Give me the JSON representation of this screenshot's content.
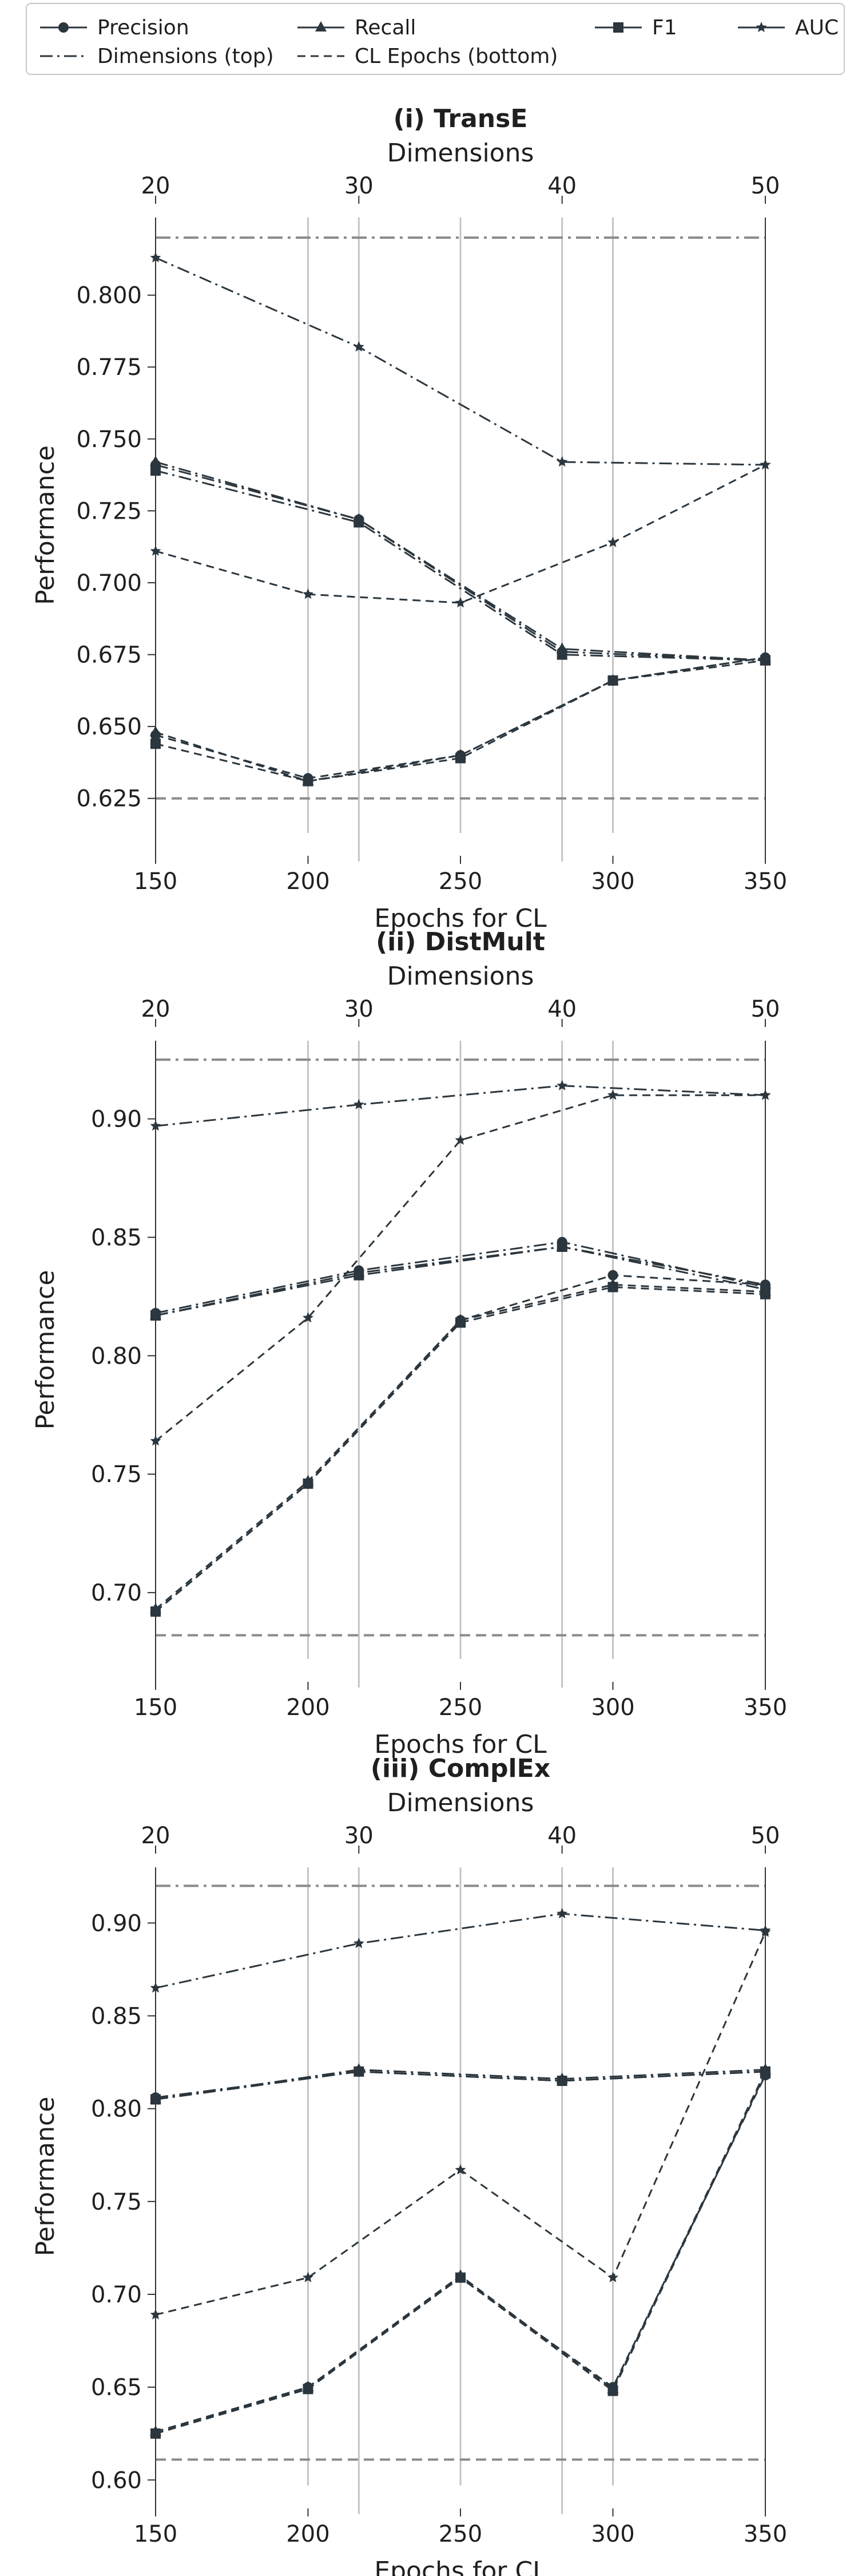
{
  "colors": {
    "series": "#2b363e",
    "vline": "#c4c4c4",
    "dimline": "#8a8a8a",
    "axis": "#333333",
    "legend_border": "#c8c8c8"
  },
  "legend": {
    "items": [
      {
        "label": "Precision",
        "key": "precision",
        "marker": "circle",
        "dash": "solid"
      },
      {
        "label": "Recall",
        "key": "recall",
        "marker": "triangle",
        "dash": "solid"
      },
      {
        "label": "F1",
        "key": "f1",
        "marker": "square",
        "dash": "solid"
      },
      {
        "label": "AUC",
        "key": "auc",
        "marker": "star",
        "dash": "solid"
      },
      {
        "label": "Dimensions (top)",
        "key": "dims",
        "marker": "none",
        "dash": "dashdot"
      },
      {
        "label": "CL Epochs (bottom)",
        "key": "epochs",
        "marker": "none",
        "dash": "dashed"
      }
    ]
  },
  "chart_data": [
    {
      "type": "line",
      "title": "(i) TransE",
      "xlabel": "Epochs for CL",
      "x2label": "Dimensions",
      "ylabel": "Performance",
      "x": [
        150,
        200,
        250,
        300,
        350
      ],
      "x_ticks": [
        150,
        200,
        250,
        300,
        350
      ],
      "x2": [
        20,
        30,
        40,
        50
      ],
      "x2_ticks": [
        20,
        30,
        40,
        50
      ],
      "dim_points": [
        20,
        30,
        40,
        50
      ],
      "ylim": [
        0.613,
        0.827
      ],
      "y_ticks": [
        "0.625",
        "0.650",
        "0.675",
        "0.700",
        "0.725",
        "0.750",
        "0.775",
        "0.800"
      ],
      "y_tick_values": [
        0.625,
        0.65,
        0.675,
        0.7,
        0.725,
        0.75,
        0.775,
        0.8
      ],
      "ref_top": 0.82,
      "ref_bottom": 0.625,
      "vlines": {
        "epochs": [
          200,
          250,
          300
        ],
        "dims": [
          30,
          40
        ]
      },
      "series_epochs": [
        {
          "name": "Precision",
          "marker": "circle",
          "values": [
            0.647,
            0.632,
            0.64,
            0.666,
            0.674
          ]
        },
        {
          "name": "Recall",
          "marker": "triangle",
          "values": [
            0.648,
            0.631,
            0.64,
            0.666,
            0.674
          ]
        },
        {
          "name": "F1",
          "marker": "square",
          "values": [
            0.644,
            0.631,
            0.639,
            0.666,
            0.673
          ]
        },
        {
          "name": "AUC",
          "marker": "star",
          "values": [
            0.711,
            0.696,
            0.693,
            0.714,
            0.741
          ]
        }
      ],
      "series_dims": [
        {
          "name": "Precision",
          "marker": "circle",
          "values": [
            0.741,
            0.722,
            0.676,
            0.673
          ]
        },
        {
          "name": "Recall",
          "marker": "triangle",
          "values": [
            0.742,
            0.722,
            0.677,
            0.673
          ]
        },
        {
          "name": "F1",
          "marker": "square",
          "values": [
            0.739,
            0.721,
            0.675,
            0.673
          ]
        },
        {
          "name": "AUC",
          "marker": "star",
          "values": [
            0.813,
            0.782,
            0.742,
            0.741
          ]
        }
      ]
    },
    {
      "type": "line",
      "title": "(ii) DistMult",
      "xlabel": "Epochs for CL",
      "x2label": "Dimensions",
      "ylabel": "Performance",
      "x": [
        150,
        200,
        250,
        300,
        350
      ],
      "x_ticks": [
        150,
        200,
        250,
        300,
        350
      ],
      "x2": [
        20,
        30,
        40,
        50
      ],
      "x2_ticks": [
        20,
        30,
        40,
        50
      ],
      "dim_points": [
        20,
        30,
        40,
        50
      ],
      "ylim": [
        0.672,
        0.933
      ],
      "y_ticks": [
        "0.70",
        "0.75",
        "0.80",
        "0.85",
        "0.90"
      ],
      "y_tick_values": [
        0.7,
        0.75,
        0.8,
        0.85,
        0.9
      ],
      "ref_top": 0.925,
      "ref_bottom": 0.682,
      "vlines": {
        "epochs": [
          200,
          250,
          300
        ],
        "dims": [
          30,
          40
        ]
      },
      "series_epochs": [
        {
          "name": "Precision",
          "marker": "circle",
          "values": [
            0.692,
            0.746,
            0.815,
            0.834,
            0.83
          ]
        },
        {
          "name": "Recall",
          "marker": "triangle",
          "values": [
            0.693,
            0.747,
            0.815,
            0.83,
            0.827
          ]
        },
        {
          "name": "F1",
          "marker": "square",
          "values": [
            0.692,
            0.746,
            0.814,
            0.829,
            0.826
          ]
        },
        {
          "name": "AUC",
          "marker": "star",
          "values": [
            0.764,
            0.816,
            0.891,
            0.91,
            0.91
          ]
        }
      ],
      "series_dims": [
        {
          "name": "Precision",
          "marker": "circle",
          "values": [
            0.818,
            0.836,
            0.848,
            0.829
          ]
        },
        {
          "name": "Recall",
          "marker": "triangle",
          "values": [
            0.817,
            0.835,
            0.846,
            0.83
          ]
        },
        {
          "name": "F1",
          "marker": "square",
          "values": [
            0.817,
            0.834,
            0.846,
            0.828
          ]
        },
        {
          "name": "AUC",
          "marker": "star",
          "values": [
            0.897,
            0.906,
            0.914,
            0.91
          ]
        }
      ]
    },
    {
      "type": "line",
      "title": "(iii) ComplEx",
      "xlabel": "Epochs for CL",
      "x2label": "Dimensions",
      "ylabel": "Performance",
      "x": [
        150,
        200,
        250,
        300,
        350
      ],
      "x_ticks": [
        150,
        200,
        250,
        300,
        350
      ],
      "x2": [
        20,
        30,
        40,
        50
      ],
      "x2_ticks": [
        20,
        30,
        40,
        50
      ],
      "dim_points": [
        20,
        30,
        40,
        50
      ],
      "ylim": [
        0.597,
        0.93
      ],
      "y_ticks": [
        "0.60",
        "0.65",
        "0.70",
        "0.75",
        "0.80",
        "0.85",
        "0.90"
      ],
      "y_tick_values": [
        0.6,
        0.65,
        0.7,
        0.75,
        0.8,
        0.85,
        0.9
      ],
      "ref_top": 0.92,
      "ref_bottom": 0.611,
      "vlines": {
        "epochs": [
          200,
          250,
          300
        ],
        "dims": [
          30,
          40
        ]
      },
      "series_epochs": [
        {
          "name": "Precision",
          "marker": "circle",
          "values": [
            0.625,
            0.65,
            0.709,
            0.65,
            0.818
          ]
        },
        {
          "name": "Recall",
          "marker": "triangle",
          "values": [
            0.626,
            0.65,
            0.71,
            0.649,
            0.82
          ]
        },
        {
          "name": "F1",
          "marker": "square",
          "values": [
            0.625,
            0.649,
            0.709,
            0.648,
            0.819
          ]
        },
        {
          "name": "AUC",
          "marker": "star",
          "values": [
            0.689,
            0.709,
            0.767,
            0.709,
            0.895
          ]
        }
      ],
      "series_dims": [
        {
          "name": "Precision",
          "marker": "circle",
          "values": [
            0.806,
            0.82,
            0.815,
            0.82
          ]
        },
        {
          "name": "Recall",
          "marker": "triangle",
          "values": [
            0.805,
            0.821,
            0.816,
            0.821
          ]
        },
        {
          "name": "F1",
          "marker": "square",
          "values": [
            0.805,
            0.82,
            0.815,
            0.82
          ]
        },
        {
          "name": "AUC",
          "marker": "star",
          "values": [
            0.865,
            0.889,
            0.905,
            0.896
          ]
        }
      ]
    }
  ]
}
